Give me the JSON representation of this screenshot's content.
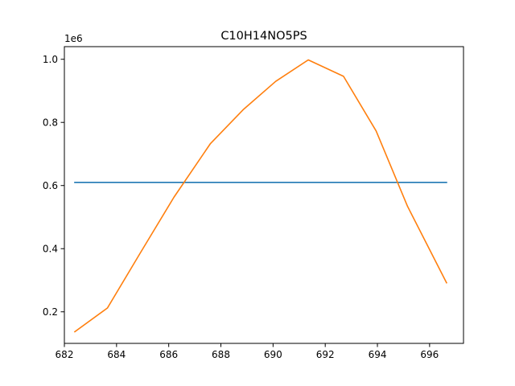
{
  "chart_data": {
    "type": "line",
    "title": "C10H14NO5PS",
    "xlabel": "",
    "ylabel": "",
    "y_offset_label": "1e6",
    "xlim": [
      682.0,
      697.3
    ],
    "ylim": [
      0.1,
      1.04
    ],
    "x_ticks": [
      682,
      684,
      686,
      688,
      690,
      692,
      694,
      696
    ],
    "x_tick_labels": [
      "682",
      "684",
      "686",
      "688",
      "690",
      "692",
      "694",
      "696"
    ],
    "y_ticks": [
      0.2,
      0.4,
      0.6,
      0.8,
      1.0
    ],
    "y_tick_labels": [
      "0.2",
      "0.4",
      "0.6",
      "0.8",
      "1.0"
    ],
    "grid": false,
    "series": [
      {
        "color": "#1f77b4",
        "x": [
          682.4,
          696.65
        ],
        "y": [
          0.61,
          0.61
        ]
      },
      {
        "color": "#ff7f0e",
        "x": [
          682.4,
          683.65,
          684.9,
          686.2,
          687.6,
          688.85,
          690.1,
          691.35,
          692.7,
          693.95,
          695.15,
          696.65
        ],
        "y": [
          0.137,
          0.212,
          0.385,
          0.563,
          0.733,
          0.84,
          0.93,
          0.998,
          0.946,
          0.773,
          0.535,
          0.292
        ]
      }
    ]
  }
}
